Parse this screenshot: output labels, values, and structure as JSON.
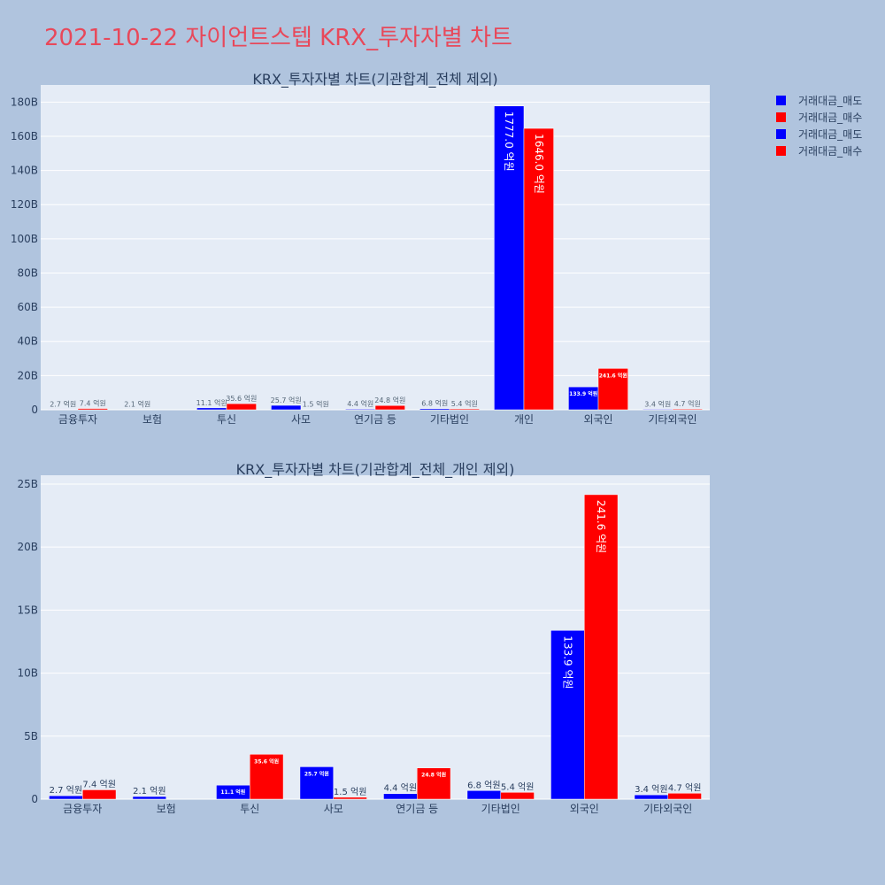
{
  "title": "2021-10-22 자이언트스텝 KRX_투자자별 차트",
  "colors": {
    "sell": "#0000ff",
    "buy": "#ff0000"
  },
  "legend": [
    {
      "label": "거래대금_매도",
      "color": "#0000ff"
    },
    {
      "label": "거래대금_매수",
      "color": "#ff0000"
    },
    {
      "label": "거래대금_매도",
      "color": "#0000ff"
    },
    {
      "label": "거래대금_매수",
      "color": "#ff0000"
    }
  ],
  "chart_data": [
    {
      "type": "bar",
      "title": "KRX_투자자별 차트(기관합계_전체 제외)",
      "categories": [
        "금융투자",
        "보험",
        "투신",
        "사모",
        "연기금 등",
        "기타법인",
        "개인",
        "외국인",
        "기타외국인"
      ],
      "series": [
        {
          "name": "거래대금_매도",
          "values": [
            0.27,
            0.21,
            1.11,
            2.57,
            0.44,
            0.68,
            177.7,
            13.39,
            0.34
          ],
          "labels": [
            "2.7 억원",
            "2.1 억원",
            "11.1 억원",
            "25.7 억원",
            "4.4 억원",
            "6.8 억원",
            "1777.0 억원",
            "133.9 억원",
            "3.4 억원"
          ]
        },
        {
          "name": "거래대금_매수",
          "values": [
            0.74,
            0,
            3.56,
            0.15,
            2.48,
            0.54,
            164.6,
            24.16,
            0.47
          ],
          "labels": [
            "7.4 억원",
            "",
            "35.6 억원",
            "1.5 억원",
            "24.8 억원",
            "5.4 억원",
            "1646.0 억원",
            "241.6 억원",
            "4.7 억원"
          ]
        }
      ],
      "ylim": [
        0,
        190
      ],
      "yticks": [
        0,
        20,
        40,
        60,
        80,
        100,
        120,
        140,
        160,
        180
      ],
      "ytick_labels": [
        "0",
        "20B",
        "40B",
        "60B",
        "80B",
        "100B",
        "120B",
        "140B",
        "160B",
        "180B"
      ]
    },
    {
      "type": "bar",
      "title": "KRX_투자자별 차트(기관합계_전체_개인 제외)",
      "categories": [
        "금융투자",
        "보험",
        "투신",
        "사모",
        "연기금 등",
        "기타법인",
        "외국인",
        "기타외국인"
      ],
      "series": [
        {
          "name": "거래대금_매도",
          "values": [
            0.27,
            0.21,
            1.11,
            2.57,
            0.44,
            0.68,
            13.39,
            0.34
          ],
          "labels": [
            "2.7 억원",
            "2.1 억원",
            "11.1 억원",
            "25.7 억원",
            "4.4 억원",
            "6.8 억원",
            "133.9 억원",
            "3.4 억원"
          ]
        },
        {
          "name": "거래대금_매수",
          "values": [
            0.74,
            0,
            3.56,
            0.15,
            2.48,
            0.54,
            24.16,
            0.47
          ],
          "labels": [
            "7.4 억원",
            "",
            "35.6 억원",
            "1.5 억원",
            "24.8 억원",
            "5.4 억원",
            "241.6 억원",
            "4.7 억원"
          ]
        }
      ],
      "ylim": [
        0,
        25.7
      ],
      "yticks": [
        0,
        5,
        10,
        15,
        20,
        25
      ],
      "ytick_labels": [
        "0",
        "5B",
        "10B",
        "15B",
        "20B",
        "25B"
      ]
    }
  ]
}
